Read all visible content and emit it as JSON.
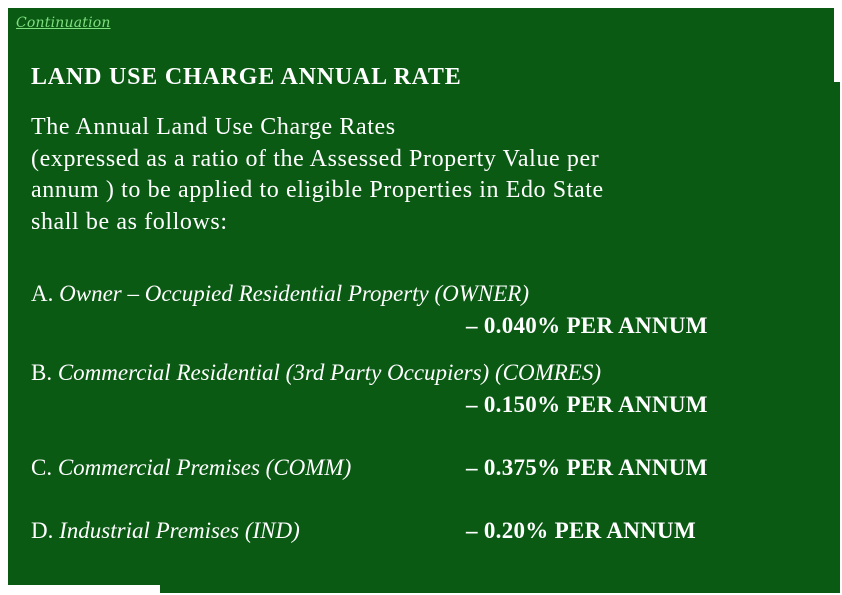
{
  "header": {
    "tag": "Continuation",
    "title": "LAND USE CHARGE ANNUAL RATE"
  },
  "intro": {
    "lines": [
      "The Annual Land Use Charge Rates",
      "(expressed as a ratio of the Assessed Property Value per",
      "annum ) to be applied to eligible Properties in Edo State",
      "shall be as follows:"
    ]
  },
  "items": [
    {
      "letter": "A.",
      "description": "Owner – Occupied Residential Property (OWNER)",
      "rate": "– 0.040% PER ANNUM"
    },
    {
      "letter": "B.",
      "description": "Commercial Residential (3rd Party Occupiers) (COMRES)",
      "rate": "– 0.150% PER ANNUM"
    },
    {
      "letter": "C.",
      "description": "Commercial Premises (COMM)",
      "rate": "– 0.375% PER ANNUM"
    },
    {
      "letter": "D.",
      "description": "Industrial Premises (IND)",
      "rate": "– 0.20% PER ANNUM"
    }
  ],
  "colors": {
    "background": "#0a5a14",
    "text": "#ffffff",
    "accent": "#7fe07f"
  }
}
